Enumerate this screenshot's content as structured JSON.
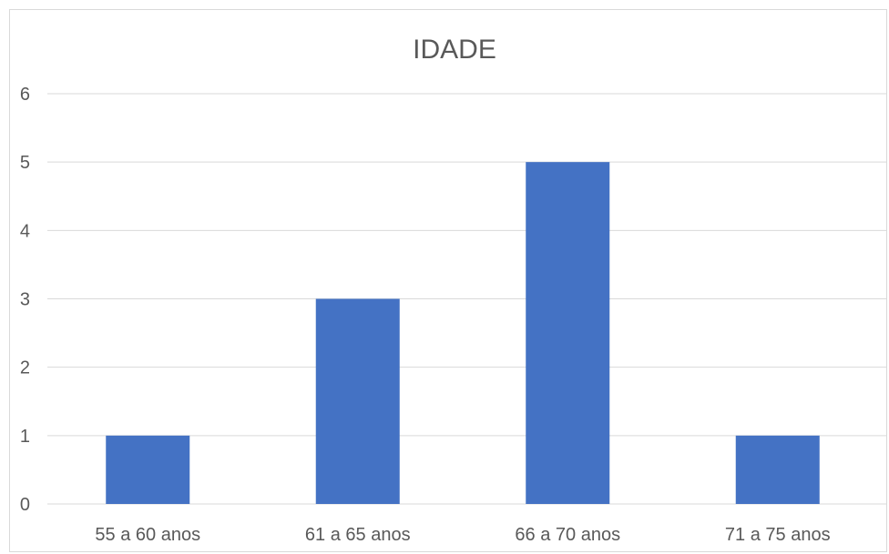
{
  "chart_data": {
    "type": "bar",
    "title": "IDADE",
    "categories": [
      "55 a 60 anos",
      "61 a 65 anos",
      "66 a 70 anos",
      "71 a 75 anos"
    ],
    "values": [
      1,
      3,
      5,
      1
    ],
    "xlabel": "",
    "ylabel": "",
    "ylim": [
      0,
      6
    ],
    "yticks": [
      "0",
      "1",
      "2",
      "3",
      "4",
      "5",
      "6"
    ],
    "grid": true,
    "legend": "none",
    "bar_color": "#4472C4",
    "grid_color": "#d9d9d9",
    "text_color": "#595959"
  }
}
